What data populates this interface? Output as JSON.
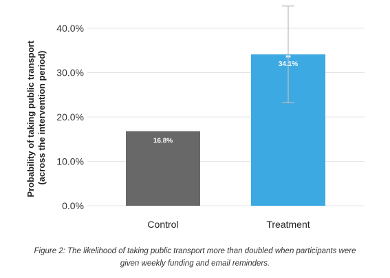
{
  "chart_data": {
    "type": "bar",
    "categories": [
      "Control",
      "Treatment"
    ],
    "values": [
      16.8,
      34.1
    ],
    "data_labels": [
      "16.8%",
      "34.1%"
    ],
    "error_bars": [
      null,
      {
        "low": 23.2,
        "high": 45.0
      }
    ],
    "significance_marker": "**",
    "colors": [
      "#686868",
      "#3da9e3"
    ],
    "ylabel_lines": [
      "Probability of taking public transport",
      "(across the intervention period)"
    ],
    "yticks": [
      "0.0%",
      "10.0%",
      "20.0%",
      "30.0%",
      "40.0%"
    ],
    "ytick_values": [
      0,
      10,
      20,
      30,
      40
    ],
    "ylim": [
      0,
      45
    ],
    "grid": true
  },
  "caption_lines": [
    "Figure 2: The likelihood of taking public transport more than doubled when participants were",
    "given weekly funding and email reminders."
  ]
}
